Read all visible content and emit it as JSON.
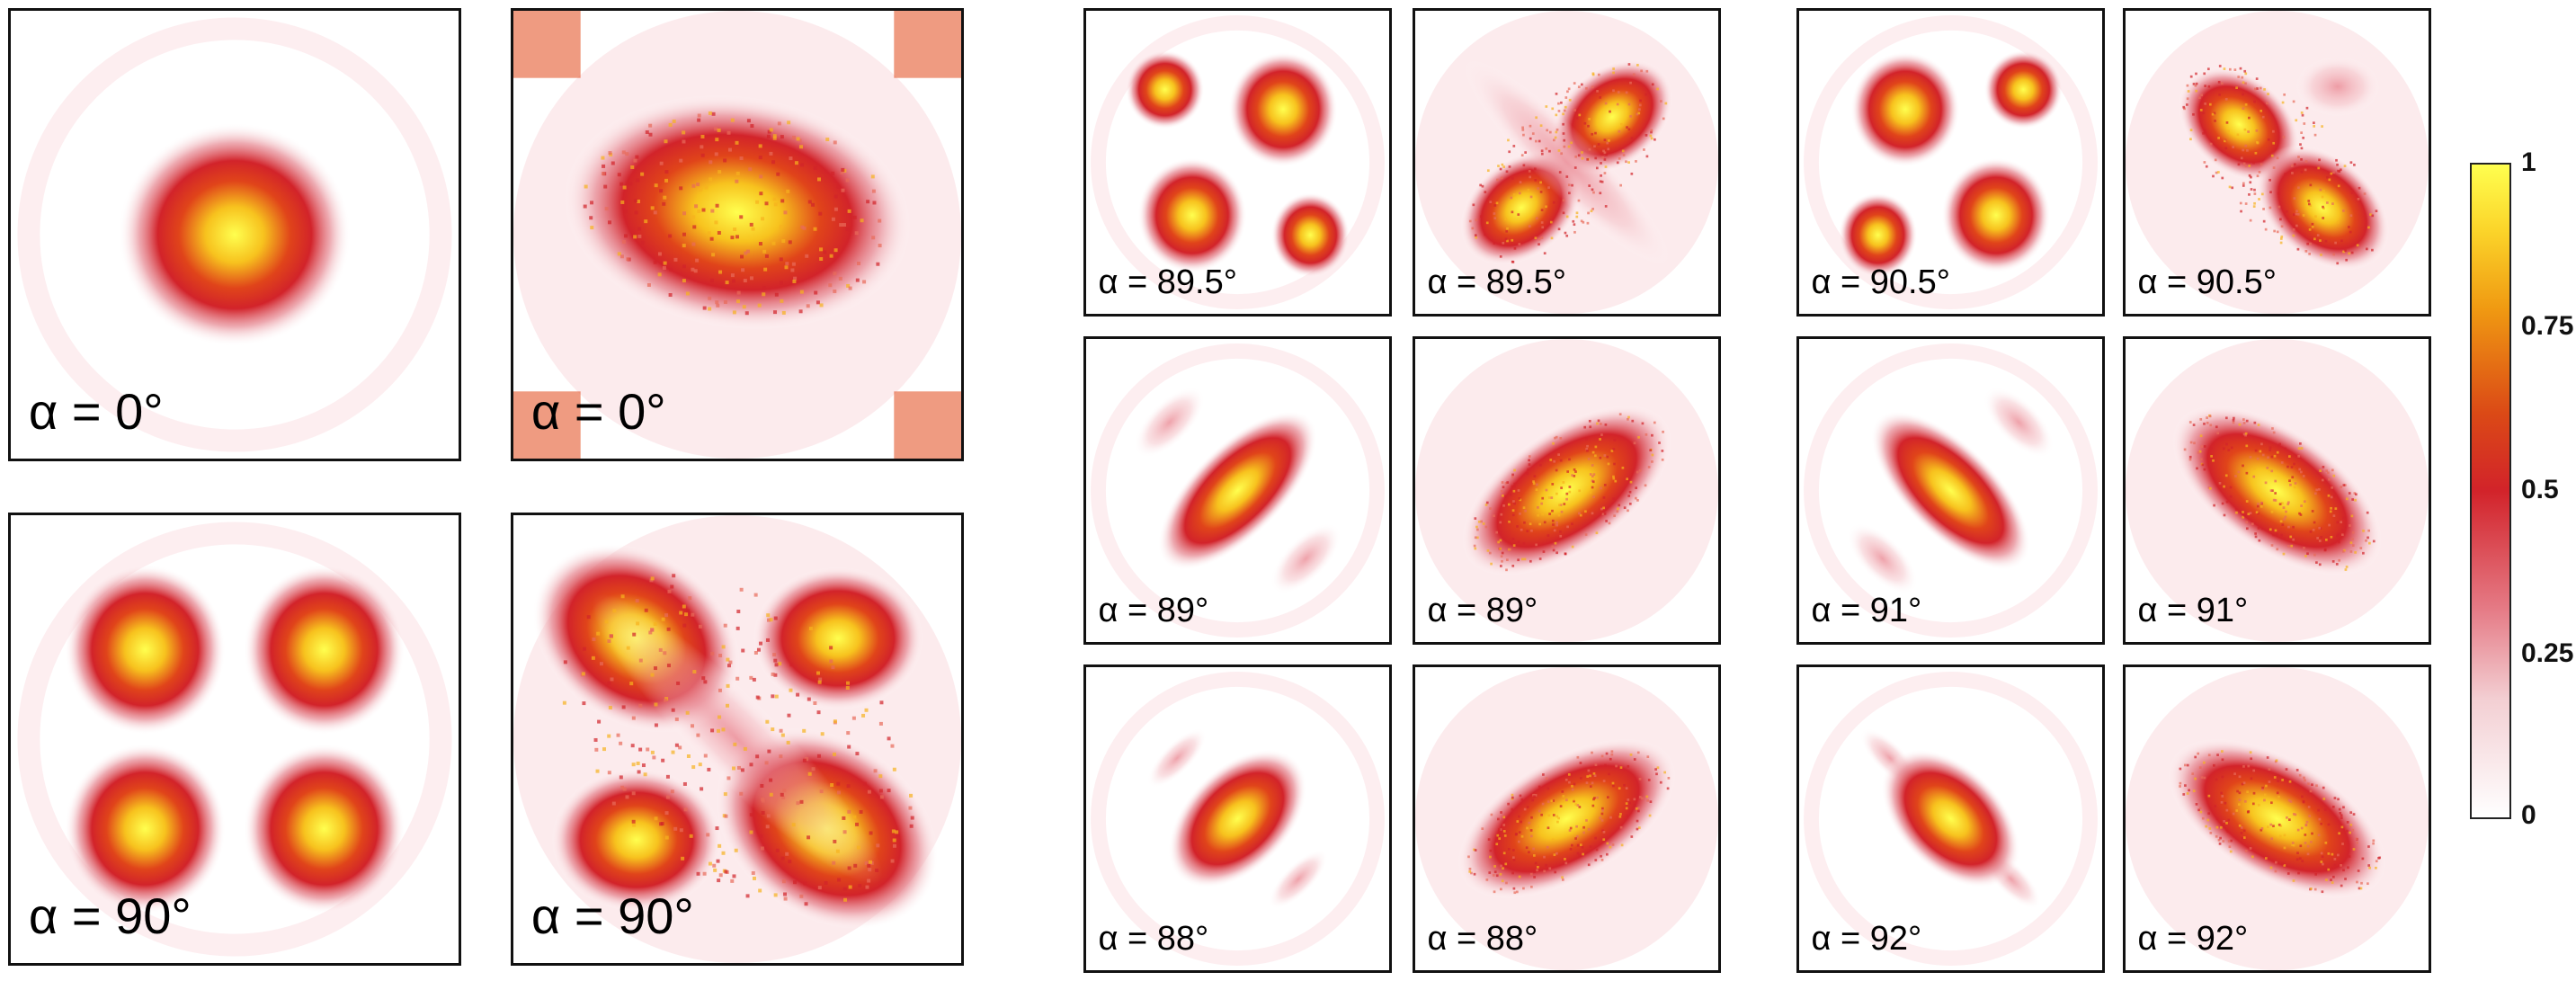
{
  "panels": [
    {
      "name": "sim-alpha-0",
      "kind": "sim",
      "pattern": "center",
      "angle": 0,
      "label": "α = 0°"
    },
    {
      "name": "exp-alpha-0",
      "kind": "exp",
      "pattern": "blob-h",
      "angle": 0,
      "label": "α = 0°"
    },
    {
      "name": "sim-alpha-90",
      "kind": "sim",
      "pattern": "four",
      "angle": 0,
      "label": "α = 90°"
    },
    {
      "name": "exp-alpha-90",
      "kind": "exp",
      "pattern": "cross",
      "angle": 0,
      "label": "α = 90°"
    },
    {
      "name": "sim-alpha-89-5",
      "kind": "sim",
      "pattern": "asym4",
      "angle": 0,
      "label": "α = 89.5°"
    },
    {
      "name": "exp-alpha-89-5",
      "kind": "exp",
      "pattern": "cross2",
      "angle": 0,
      "label": "α = 89.5°"
    },
    {
      "name": "sim-alpha-89",
      "kind": "sim",
      "pattern": "bar",
      "angle": -45,
      "label": "α = 89°"
    },
    {
      "name": "exp-alpha-89",
      "kind": "exp",
      "pattern": "elong",
      "angle": -35,
      "label": "α = 89°"
    },
    {
      "name": "sim-alpha-88",
      "kind": "sim",
      "pattern": "ellipse",
      "angle": -45,
      "label": "α = 88°"
    },
    {
      "name": "exp-alpha-88",
      "kind": "exp",
      "pattern": "elong",
      "angle": -30,
      "label": "α = 88°"
    },
    {
      "name": "sim-alpha-90-5",
      "kind": "sim",
      "pattern": "asym4m",
      "angle": 0,
      "label": "α = 90.5°"
    },
    {
      "name": "exp-alpha-90-5",
      "kind": "exp",
      "pattern": "cross3",
      "angle": 0,
      "label": "α = 90.5°"
    },
    {
      "name": "sim-alpha-91",
      "kind": "sim",
      "pattern": "bar",
      "angle": 45,
      "label": "α = 91°"
    },
    {
      "name": "exp-alpha-91",
      "kind": "exp",
      "pattern": "elong",
      "angle": 35,
      "label": "α = 91°"
    },
    {
      "name": "sim-alpha-92",
      "kind": "sim",
      "pattern": "ellipse",
      "angle": 45,
      "label": "α = 92°"
    },
    {
      "name": "exp-alpha-92",
      "kind": "exp",
      "pattern": "elong",
      "angle": 30,
      "label": "α = 92°"
    }
  ],
  "colorbar": {
    "ticks": [
      "1",
      "0.75",
      "0.5",
      "0.25",
      "0"
    ],
    "colors": [
      "#ffffff",
      "#e57a85",
      "#d2232a",
      "#f09a12",
      "#ffff4f"
    ]
  }
}
